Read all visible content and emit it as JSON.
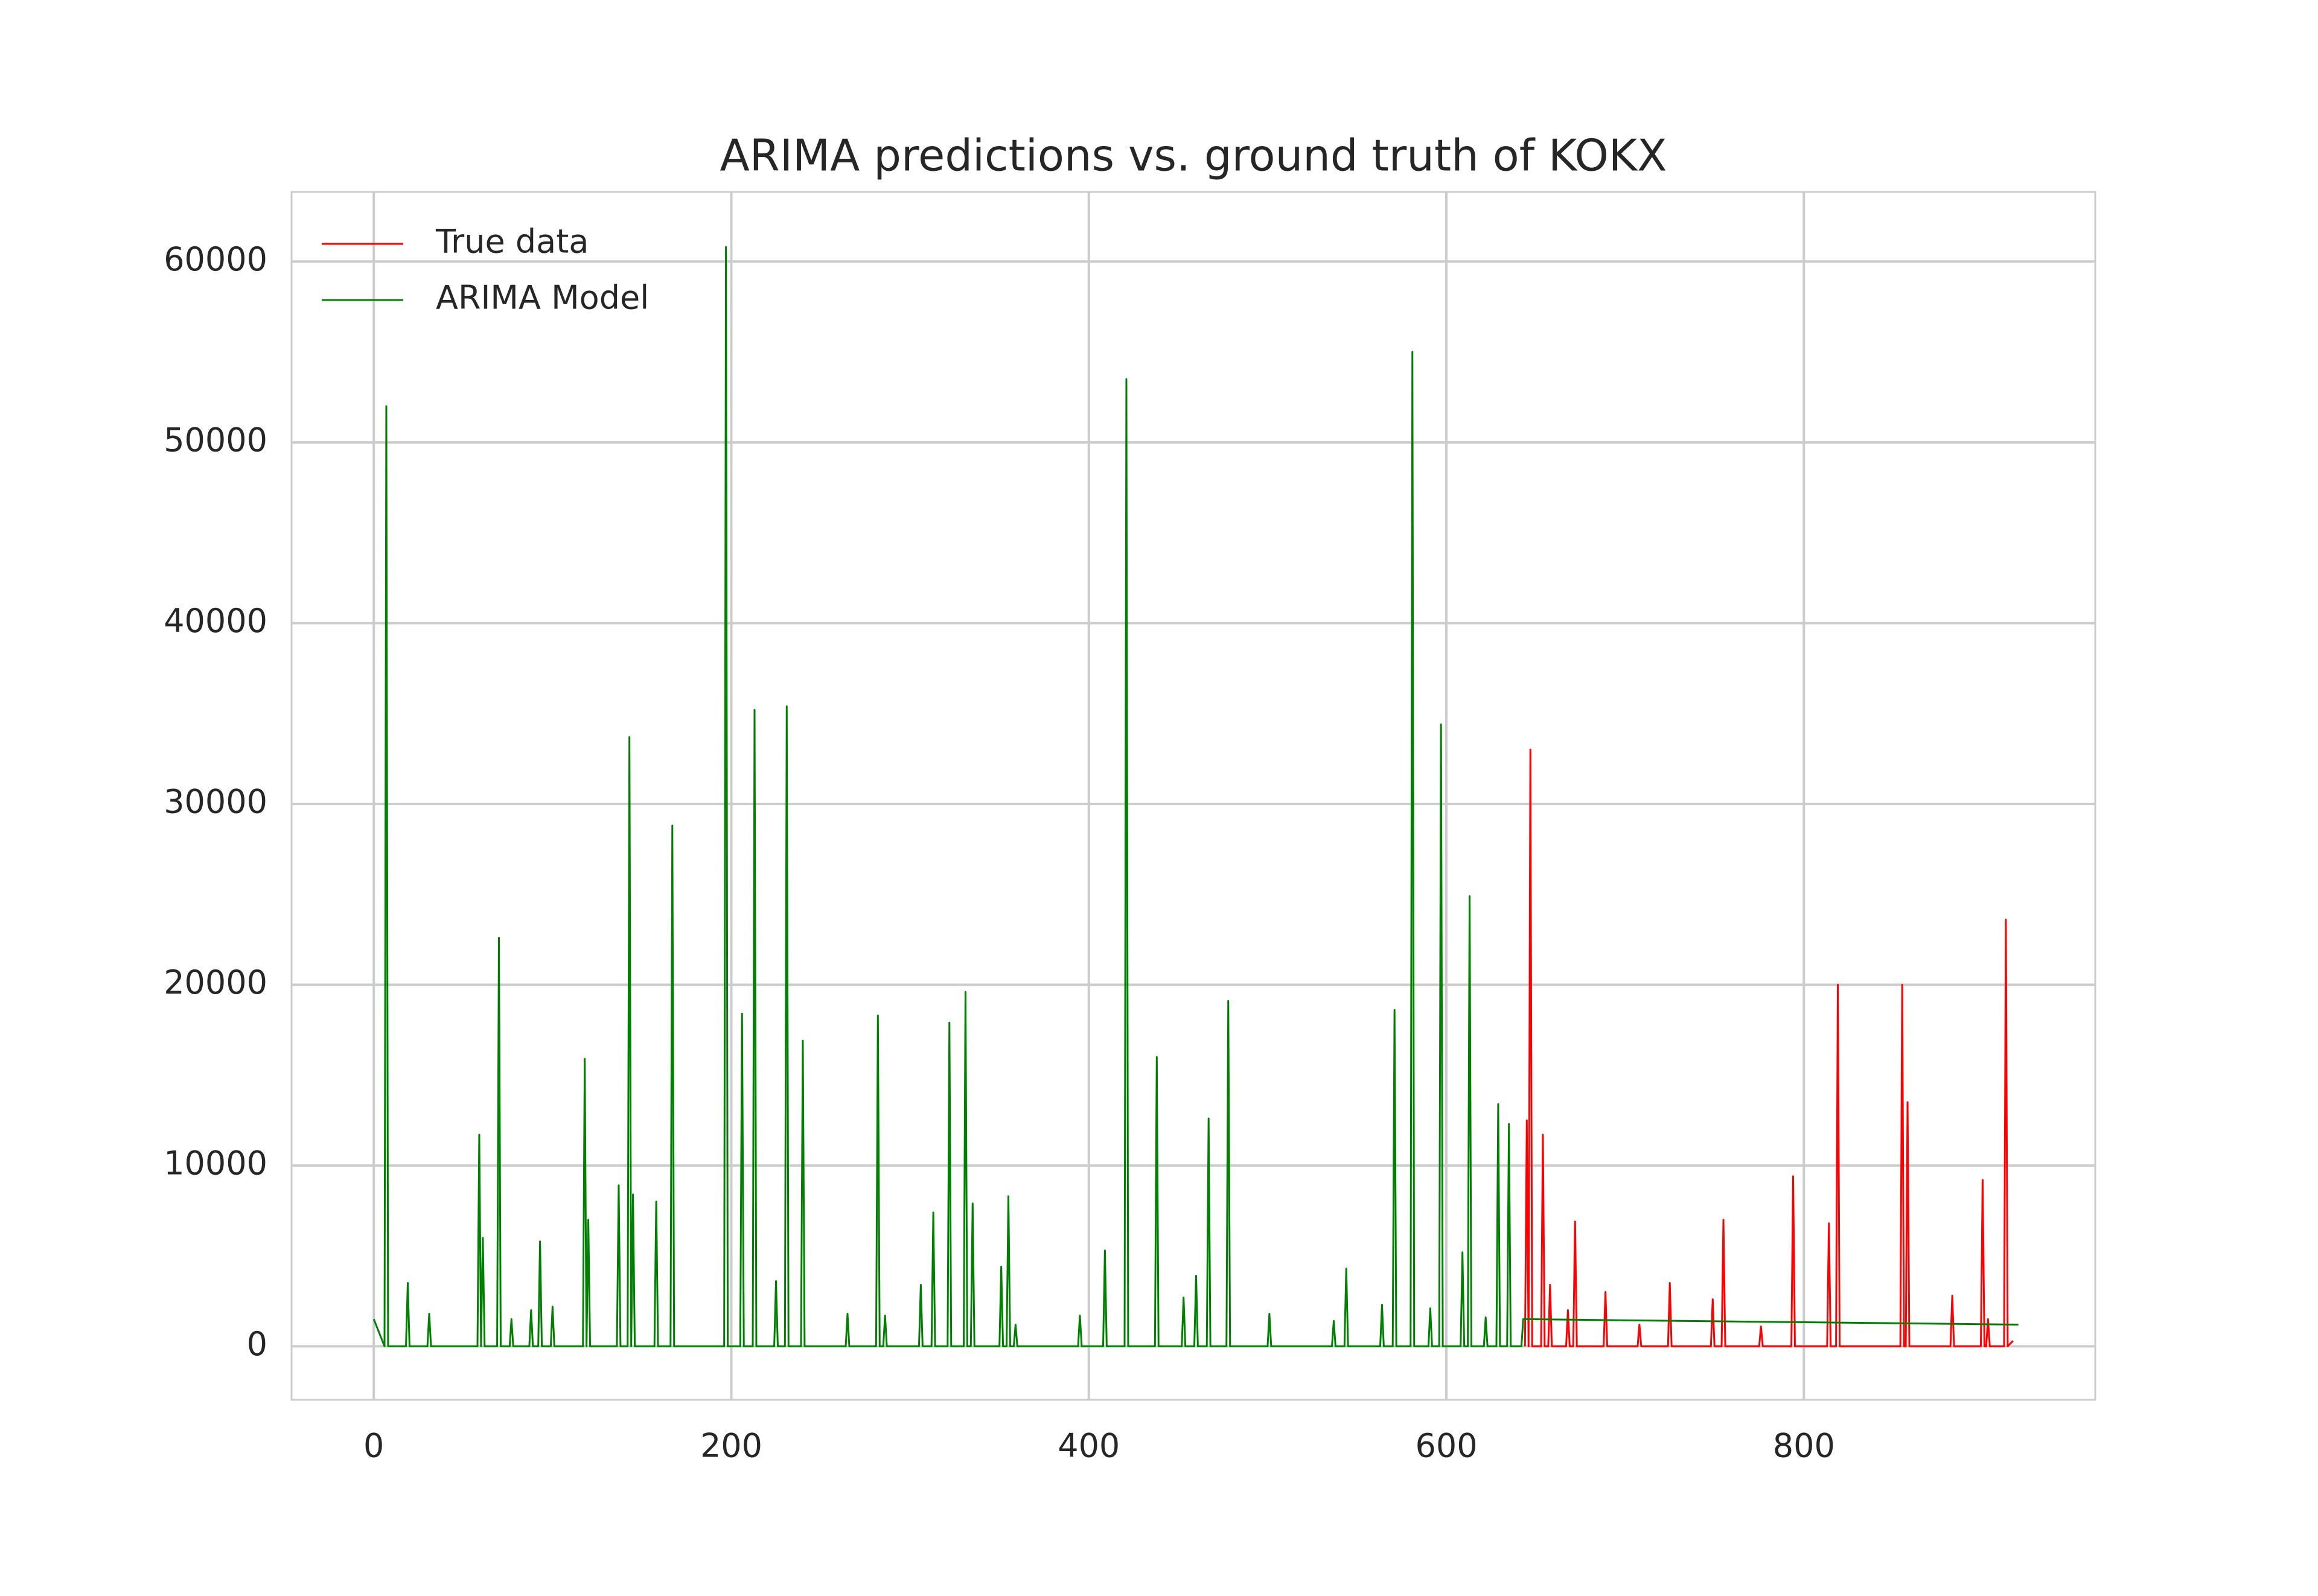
{
  "chart_data": {
    "type": "line",
    "title": "ARIMA predictions vs. ground truth of KOKX",
    "xlim": [
      -46,
      963
    ],
    "ylim": [
      -2960,
      63850
    ],
    "xticks": [
      0,
      200,
      400,
      600,
      800
    ],
    "yticks": [
      0,
      10000,
      20000,
      30000,
      40000,
      50000,
      60000
    ],
    "grid": true,
    "legend": "upper left",
    "series": [
      {
        "name": "True data",
        "color": "#ff0000",
        "x": [
          644,
          645,
          646,
          647,
          648,
          653,
          654,
          655,
          657,
          658,
          659,
          667,
          668,
          669,
          671,
          672,
          673,
          688,
          689,
          690,
          707,
          708,
          709,
          724,
          725,
          726,
          748,
          749,
          750,
          754,
          755,
          756,
          775,
          776,
          777,
          793,
          794,
          795,
          813,
          814,
          815,
          818,
          819,
          820,
          854,
          855,
          856,
          857,
          858,
          859,
          882,
          883,
          884,
          899,
          900,
          901,
          902,
          903,
          904,
          912,
          913,
          914,
          917
        ],
        "values": [
          0,
          12500,
          0,
          33000,
          0,
          0,
          11700,
          0,
          0,
          3400,
          0,
          0,
          2000,
          0,
          0,
          6900,
          0,
          0,
          3000,
          0,
          0,
          1200,
          0,
          0,
          3500,
          0,
          0,
          2600,
          0,
          0,
          7000,
          0,
          0,
          1100,
          0,
          0,
          9400,
          0,
          0,
          6800,
          0,
          0,
          20000,
          0,
          0,
          20000,
          0,
          0,
          13500,
          0,
          0,
          2800,
          0,
          0,
          9200,
          0,
          0,
          1500,
          0,
          0,
          23600,
          0,
          300
        ]
      },
      {
        "name": "ARIMA Model",
        "color": "#008000",
        "x": [
          0,
          6,
          7,
          8,
          18,
          19,
          20,
          30,
          31,
          32,
          58,
          59,
          60,
          61,
          62,
          69,
          70,
          71,
          76,
          77,
          78,
          87,
          88,
          89,
          92,
          93,
          94,
          99,
          100,
          101,
          117,
          118,
          119,
          120,
          121,
          136,
          137,
          138,
          142,
          143,
          144,
          145,
          146,
          157,
          158,
          159,
          166,
          167,
          168,
          196,
          197,
          198,
          205,
          206,
          207,
          212,
          213,
          214,
          224,
          225,
          226,
          230,
          231,
          232,
          239,
          240,
          241,
          264,
          265,
          266,
          281,
          282,
          283,
          285,
          286,
          287,
          305,
          306,
          307,
          312,
          313,
          314,
          321,
          322,
          323,
          330,
          331,
          332,
          334,
          335,
          336,
          350,
          351,
          352,
          354,
          355,
          356,
          358,
          359,
          360,
          394,
          395,
          396,
          408,
          409,
          410,
          420,
          421,
          422,
          437,
          438,
          439,
          452,
          453,
          454,
          459,
          460,
          461,
          466,
          467,
          468,
          477,
          478,
          479,
          500,
          501,
          502,
          536,
          537,
          538,
          543,
          544,
          545,
          563,
          564,
          565,
          570,
          571,
          572,
          580,
          581,
          582,
          590,
          591,
          592,
          596,
          597,
          598,
          608,
          609,
          610,
          612,
          613,
          614,
          621,
          622,
          623,
          628,
          629,
          630,
          634,
          635,
          636,
          642,
          643,
          645,
          920
        ],
        "values": [
          1500,
          0,
          52000,
          0,
          0,
          3500,
          0,
          0,
          1800,
          0,
          0,
          11700,
          0,
          6000,
          0,
          0,
          22600,
          0,
          0,
          1500,
          0,
          0,
          2000,
          0,
          0,
          5800,
          0,
          0,
          2200,
          0,
          0,
          15900,
          0,
          7000,
          0,
          0,
          8900,
          0,
          0,
          33700,
          0,
          8400,
          0,
          0,
          8000,
          0,
          0,
          28800,
          0,
          0,
          60800,
          0,
          0,
          18400,
          0,
          0,
          35200,
          0,
          0,
          3600,
          0,
          0,
          35400,
          0,
          0,
          16900,
          0,
          0,
          1800,
          0,
          0,
          18300,
          0,
          0,
          1700,
          0,
          0,
          3400,
          0,
          0,
          7400,
          0,
          0,
          17900,
          0,
          0,
          19600,
          0,
          0,
          7900,
          0,
          0,
          4400,
          0,
          0,
          8300,
          0,
          0,
          1200,
          0,
          0,
          1700,
          0,
          0,
          5300,
          0,
          0,
          53500,
          0,
          0,
          16000,
          0,
          0,
          2700,
          0,
          0,
          3900,
          0,
          0,
          12600,
          0,
          0,
          19100,
          0,
          0,
          1800,
          0,
          0,
          1400,
          0,
          0,
          4300,
          0,
          0,
          2300,
          0,
          0,
          18600,
          0,
          0,
          55000,
          0,
          0,
          2100,
          0,
          0,
          34400,
          0,
          0,
          5200,
          0,
          0,
          24900,
          0,
          0,
          1600,
          0,
          0,
          13400,
          0,
          0,
          12300,
          0,
          0,
          1500,
          1500,
          1200
        ]
      }
    ]
  }
}
